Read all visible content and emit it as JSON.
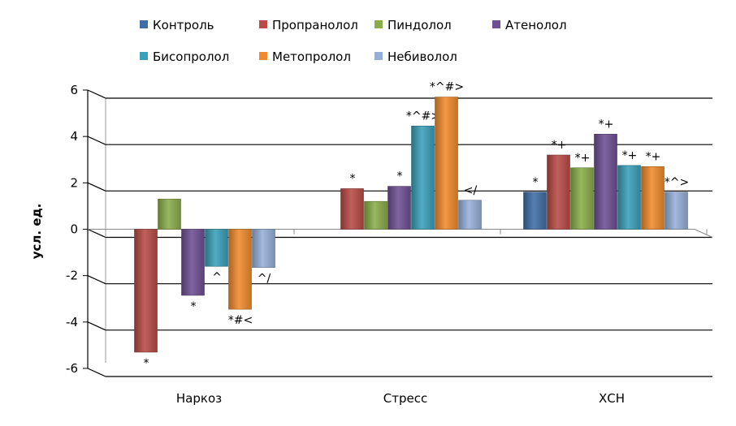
{
  "chart_data": {
    "type": "bar",
    "ylabel": "усл. ед.",
    "ylim": [
      -6,
      6
    ],
    "yticks": [
      "6",
      "4",
      "2",
      "0",
      "-2",
      "-4",
      "-6"
    ],
    "categories": [
      "Наркоз",
      "Стресс",
      "ХСН"
    ],
    "legend_position": "top",
    "series": [
      {
        "name": "Контроль",
        "color": "#3f6ea6",
        "values": [
          0,
          0,
          1.6
        ],
        "labels": [
          "",
          "",
          "*"
        ]
      },
      {
        "name": "Пропранолол",
        "color": "#b94a45",
        "values": [
          -5.3,
          1.75,
          3.2
        ],
        "labels": [
          "*",
          "*",
          "*+"
        ]
      },
      {
        "name": "Пиндолол",
        "color": "#8aad4a",
        "values": [
          1.3,
          1.2,
          2.65
        ],
        "labels": [
          "",
          "",
          "*+"
        ]
      },
      {
        "name": "Атенолол",
        "color": "#6f4f93",
        "values": [
          -2.85,
          1.85,
          4.1
        ],
        "labels": [
          "*",
          "*",
          "*+"
        ]
      },
      {
        "name": "Бисопролол",
        "color": "#3a9fb8",
        "values": [
          -1.6,
          4.45,
          2.75
        ],
        "labels": [
          "^",
          "*^#>",
          "*+"
        ]
      },
      {
        "name": "Метопролол",
        "color": "#f08a2c",
        "values": [
          -3.45,
          5.7,
          2.7
        ],
        "labels": [
          "*#<",
          "*^#>",
          "*+"
        ]
      },
      {
        "name": "Небиволол",
        "color": "#96afd8",
        "values": [
          -1.65,
          1.25,
          1.6
        ],
        "labels": [
          "^/",
          "</",
          "*^>"
        ]
      }
    ]
  }
}
